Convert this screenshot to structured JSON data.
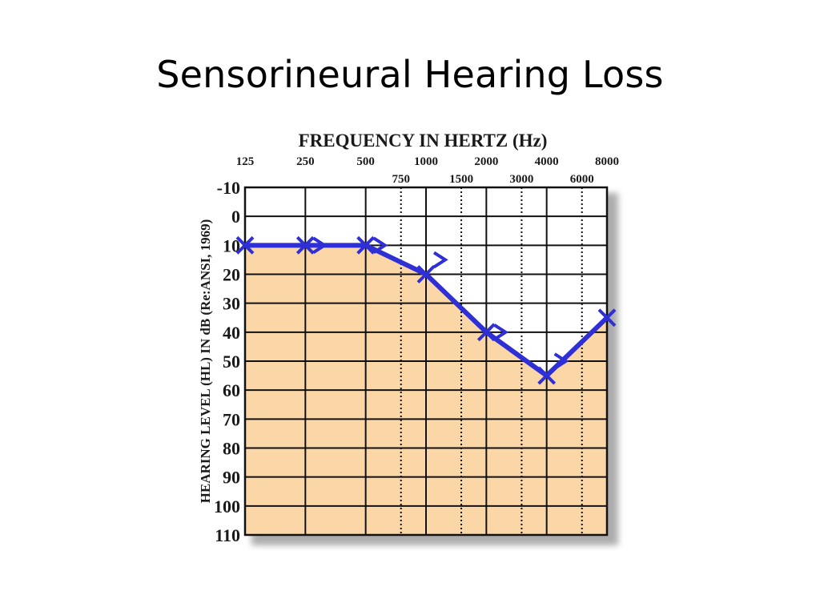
{
  "slide": {
    "title": "Sensorineural Hearing Loss"
  },
  "chart_data": {
    "type": "line",
    "title": "FREQUENCY IN HERTZ (Hz)",
    "xlabel": "FREQUENCY IN HERTZ (Hz)",
    "ylabel": "HEARING LEVEL (HL) IN dB (Re:ANSI, 1969)",
    "x_ticks_major": [
      "125",
      "250",
      "500",
      "1000",
      "2000",
      "4000",
      "8000"
    ],
    "x_ticks_minor": [
      "750",
      "1500",
      "3000",
      "6000"
    ],
    "y_ticks": [
      "-10",
      "0",
      "10",
      "20",
      "30",
      "40",
      "50",
      "60",
      "70",
      "80",
      "90",
      "100",
      "110"
    ],
    "ylim": [
      -10,
      110
    ],
    "y_inverted": true,
    "grid": true,
    "series": [
      {
        "marker": "x",
        "color": "#2f2fd6",
        "x": [
          125,
          250,
          500,
          1000,
          2000,
          4000,
          8000
        ],
        "values": [
          10,
          10,
          10,
          20,
          40,
          55,
          35
        ]
      },
      {
        "marker": ">",
        "color": "#2f2fd6",
        "x": [
          250,
          500,
          1000,
          2000,
          4000
        ],
        "values": [
          10,
          10,
          15,
          40,
          50
        ]
      }
    ],
    "colors": {
      "loss_fill": "#fbd7a8",
      "line": "#2f2fd6",
      "grid": "#111111"
    }
  }
}
